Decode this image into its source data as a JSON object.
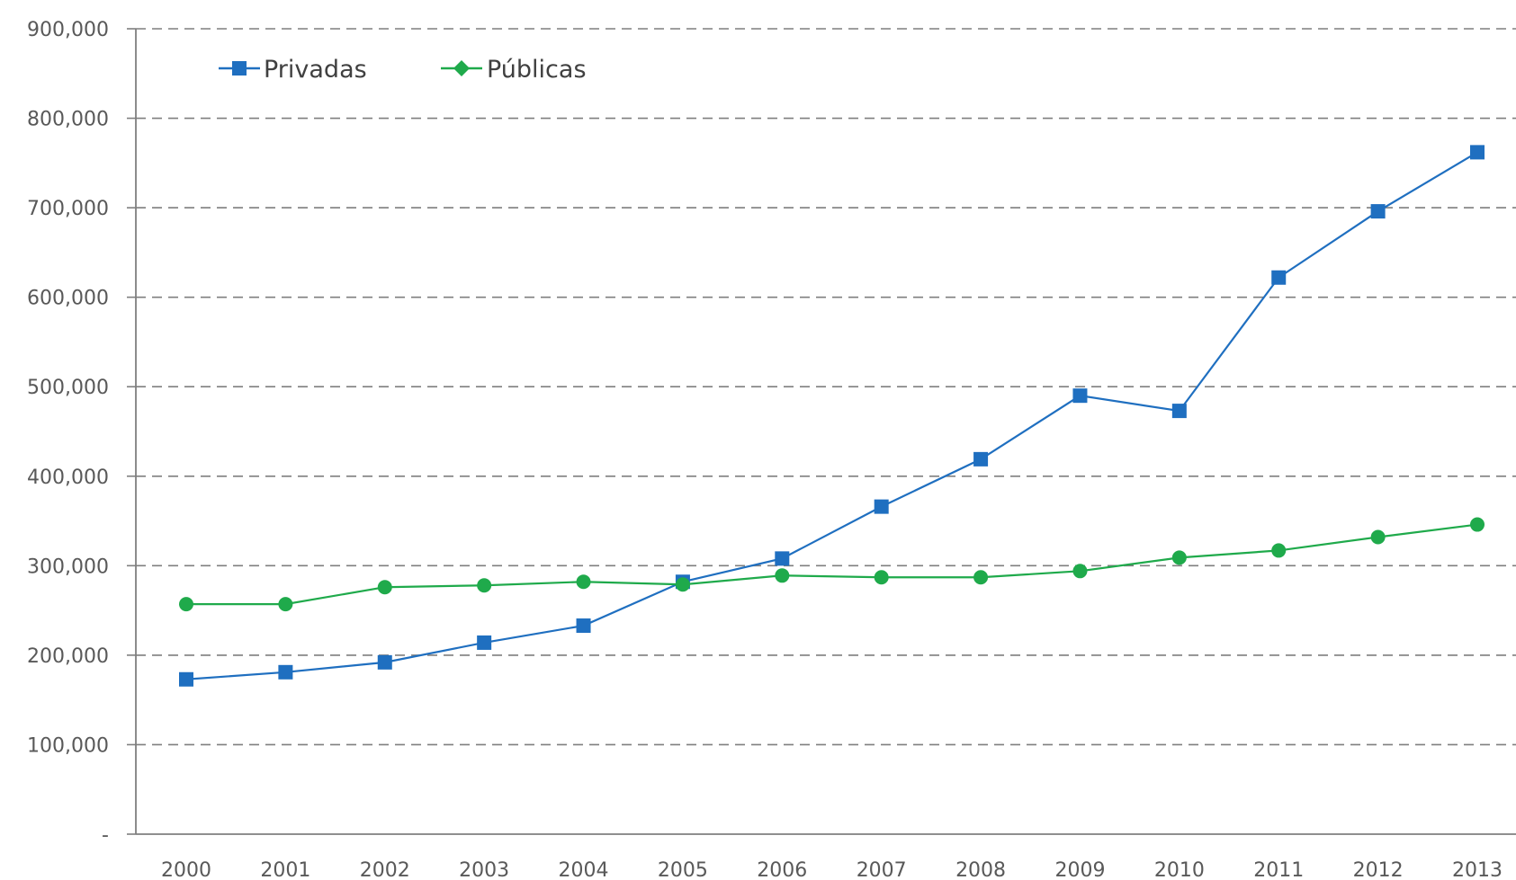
{
  "chart_data": {
    "type": "line",
    "title": "",
    "xlabel": "",
    "ylabel": "",
    "categories": [
      "2000",
      "2001",
      "2002",
      "2003",
      "2004",
      "2005",
      "2006",
      "2007",
      "2008",
      "2009",
      "2010",
      "2011",
      "2012",
      "2013"
    ],
    "ylim": [
      0,
      900000
    ],
    "y_ticks": [
      {
        "value": 0,
        "label": "-"
      },
      {
        "value": 100000,
        "label": "100,000"
      },
      {
        "value": 200000,
        "label": "200,000"
      },
      {
        "value": 300000,
        "label": "300,000"
      },
      {
        "value": 400000,
        "label": "400,000"
      },
      {
        "value": 500000,
        "label": "500,000"
      },
      {
        "value": 600000,
        "label": "600,000"
      },
      {
        "value": 700000,
        "label": "700,000"
      },
      {
        "value": 800000,
        "label": "800,000"
      },
      {
        "value": 900000,
        "label": "900,000"
      }
    ],
    "grid": "horizontal-dashed",
    "legend_position": "top-left",
    "series": [
      {
        "name": "Privadas",
        "color": "#1f6fc0",
        "marker": "square",
        "values": [
          173000,
          181000,
          192000,
          214000,
          233000,
          282000,
          308000,
          366000,
          419000,
          490000,
          473000,
          622000,
          696000,
          762000
        ]
      },
      {
        "name": "Públicas",
        "color": "#1faa4b",
        "marker": "diamond",
        "values": [
          257000,
          257000,
          276000,
          278000,
          282000,
          279000,
          289000,
          287000,
          287000,
          294000,
          309000,
          317000,
          332000,
          346000
        ]
      }
    ]
  }
}
